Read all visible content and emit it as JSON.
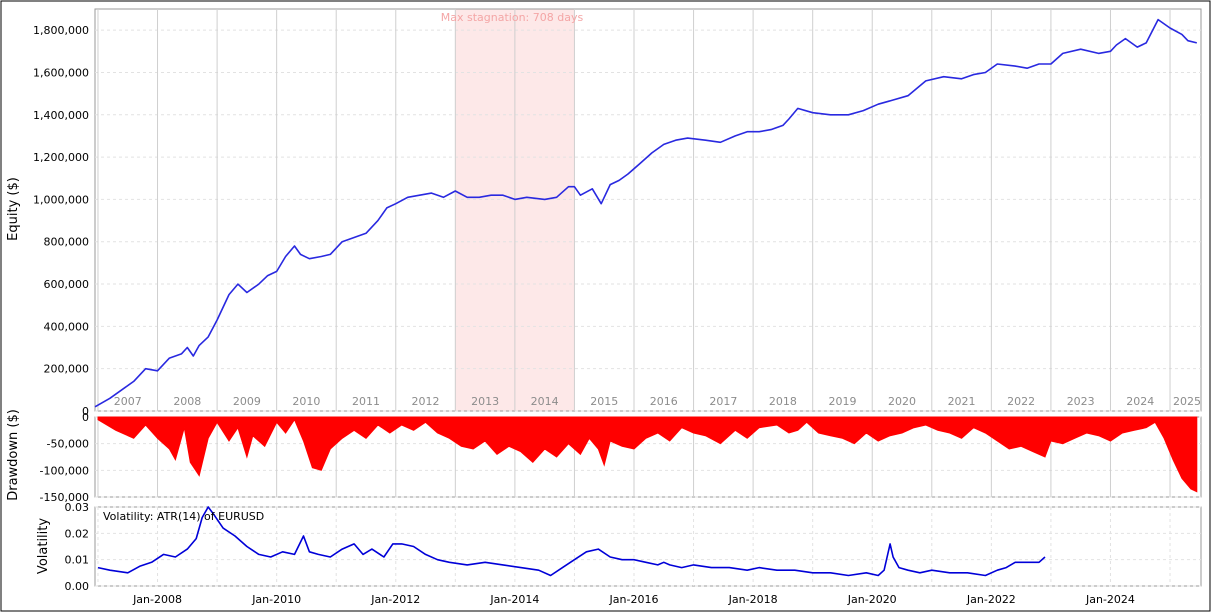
{
  "chart_data": [
    {
      "type": "line",
      "ylabel": "Equity ($)",
      "ylim": [
        0,
        1900000
      ],
      "yticks": [
        0,
        200000,
        400000,
        600000,
        800000,
        1000000,
        1200000,
        1400000,
        1600000,
        1800000
      ],
      "ytick_labels": [
        "0",
        "200,000",
        "400,000",
        "600,000",
        "800,000",
        "1,000,000",
        "1,200,000",
        "1,400,000",
        "1,600,000",
        "1,800,000"
      ],
      "year_labels": [
        "2007",
        "2008",
        "2009",
        "2010",
        "2011",
        "2012",
        "2013",
        "2014",
        "2015",
        "2016",
        "2017",
        "2018",
        "2019",
        "2020",
        "2021",
        "2022",
        "2023",
        "2024",
        "2025"
      ],
      "annotation": "Max stagnation: 708 days",
      "stagnation": {
        "start": 2013.0,
        "end": 2015.0
      },
      "grid": true,
      "series_color": "#2929e0",
      "series": [
        {
          "x": [
            2006.95,
            2007.2,
            2007.45,
            2007.6,
            2007.8,
            2008.0,
            2008.2,
            2008.4,
            2008.5,
            2008.6,
            2008.7,
            2008.85,
            2009.0,
            2009.2,
            2009.35,
            2009.5,
            2009.7,
            2009.85,
            2010.0,
            2010.15,
            2010.3,
            2010.4,
            2010.55,
            2010.75,
            2010.9,
            2011.1,
            2011.3,
            2011.5,
            2011.7,
            2011.85,
            2012.0,
            2012.2,
            2012.4,
            2012.6,
            2012.8,
            2013.0,
            2013.2,
            2013.4,
            2013.6,
            2013.8,
            2014.0,
            2014.2,
            2014.5,
            2014.7,
            2014.9,
            2015.0,
            2015.1,
            2015.3,
            2015.45,
            2015.6,
            2015.75,
            2015.9,
            2016.1,
            2016.3,
            2016.5,
            2016.7,
            2016.9,
            2017.2,
            2017.45,
            2017.7,
            2017.9,
            2018.1,
            2018.3,
            2018.5,
            2018.6,
            2018.75,
            2019.0,
            2019.3,
            2019.6,
            2019.85,
            2020.1,
            2020.35,
            2020.6,
            2020.9,
            2021.2,
            2021.5,
            2021.7,
            2021.9,
            2022.1,
            2022.4,
            2022.6,
            2022.8,
            2023.0,
            2023.2,
            2023.5,
            2023.8,
            2024.0,
            2024.1,
            2024.25,
            2024.45,
            2024.6,
            2024.8,
            2025.0,
            2025.2,
            2025.3,
            2025.45
          ],
          "y": [
            20000,
            60000,
            110000,
            140000,
            200000,
            190000,
            250000,
            270000,
            300000,
            260000,
            310000,
            350000,
            430000,
            550000,
            600000,
            560000,
            600000,
            640000,
            660000,
            730000,
            780000,
            740000,
            720000,
            730000,
            740000,
            800000,
            820000,
            840000,
            900000,
            960000,
            980000,
            1010000,
            1020000,
            1030000,
            1010000,
            1040000,
            1010000,
            1010000,
            1020000,
            1020000,
            1000000,
            1010000,
            1000000,
            1010000,
            1060000,
            1060000,
            1020000,
            1050000,
            980000,
            1070000,
            1090000,
            1120000,
            1170000,
            1220000,
            1260000,
            1280000,
            1290000,
            1280000,
            1270000,
            1300000,
            1320000,
            1320000,
            1330000,
            1350000,
            1380000,
            1430000,
            1410000,
            1400000,
            1400000,
            1420000,
            1450000,
            1470000,
            1490000,
            1560000,
            1580000,
            1570000,
            1590000,
            1600000,
            1640000,
            1630000,
            1620000,
            1640000,
            1640000,
            1690000,
            1710000,
            1690000,
            1700000,
            1730000,
            1760000,
            1720000,
            1740000,
            1850000,
            1810000,
            1780000,
            1750000,
            1740000
          ]
        }
      ]
    },
    {
      "type": "area",
      "ylabel": "Drawdown ($)",
      "ylim": [
        -150000,
        0
      ],
      "yticks": [
        0,
        -50000,
        -100000,
        -150000
      ],
      "ytick_labels": [
        "0",
        "-50,000",
        "-100,000",
        "-150,000"
      ],
      "grid": true,
      "series_color": "#ff0000",
      "series": [
        {
          "x": [
            2007.0,
            2007.3,
            2007.6,
            2007.8,
            2008.0,
            2008.2,
            2008.3,
            2008.45,
            2008.55,
            2008.7,
            2008.85,
            2009.0,
            2009.2,
            2009.35,
            2009.5,
            2009.6,
            2009.8,
            2010.0,
            2010.15,
            2010.3,
            2010.45,
            2010.6,
            2010.75,
            2010.9,
            2011.1,
            2011.3,
            2011.5,
            2011.7,
            2011.9,
            2012.1,
            2012.3,
            2012.5,
            2012.7,
            2012.9,
            2013.1,
            2013.3,
            2013.5,
            2013.7,
            2013.9,
            2014.1,
            2014.3,
            2014.5,
            2014.7,
            2014.9,
            2015.1,
            2015.25,
            2015.4,
            2015.5,
            2015.6,
            2015.8,
            2016.0,
            2016.2,
            2016.4,
            2016.6,
            2016.8,
            2017.0,
            2017.2,
            2017.45,
            2017.7,
            2017.9,
            2018.1,
            2018.4,
            2018.6,
            2018.75,
            2018.9,
            2019.1,
            2019.3,
            2019.5,
            2019.7,
            2019.9,
            2020.1,
            2020.3,
            2020.5,
            2020.7,
            2020.9,
            2021.1,
            2021.3,
            2021.5,
            2021.7,
            2021.9,
            2022.1,
            2022.3,
            2022.5,
            2022.7,
            2022.9,
            2023.0,
            2023.2,
            2023.4,
            2023.6,
            2023.8,
            2024.0,
            2024.2,
            2024.4,
            2024.6,
            2024.75,
            2024.9,
            2025.05,
            2025.2,
            2025.35,
            2025.45
          ],
          "y": [
            -5000,
            -25000,
            -40000,
            -15000,
            -40000,
            -60000,
            -80000,
            -20000,
            -85000,
            -110000,
            -40000,
            -10000,
            -45000,
            -20000,
            -75000,
            -35000,
            -55000,
            -10000,
            -30000,
            -5000,
            -45000,
            -95000,
            -100000,
            -60000,
            -40000,
            -25000,
            -40000,
            -15000,
            -30000,
            -15000,
            -25000,
            -10000,
            -30000,
            -40000,
            -55000,
            -60000,
            -45000,
            -70000,
            -55000,
            -65000,
            -85000,
            -60000,
            -75000,
            -50000,
            -70000,
            -40000,
            -60000,
            -90000,
            -45000,
            -55000,
            -60000,
            -40000,
            -30000,
            -45000,
            -20000,
            -30000,
            -35000,
            -50000,
            -25000,
            -40000,
            -20000,
            -15000,
            -30000,
            -25000,
            -10000,
            -30000,
            -35000,
            -40000,
            -50000,
            -30000,
            -45000,
            -35000,
            -30000,
            -20000,
            -15000,
            -25000,
            -30000,
            -40000,
            -20000,
            -30000,
            -45000,
            -60000,
            -55000,
            -65000,
            -75000,
            -45000,
            -50000,
            -40000,
            -30000,
            -35000,
            -45000,
            -30000,
            -25000,
            -20000,
            -10000,
            -40000,
            -80000,
            -115000,
            -135000,
            -140000
          ]
        }
      ]
    },
    {
      "type": "line",
      "ylabel": "Volatility",
      "legend": "Volatility: ATR(14) of EURUSD",
      "ylim": [
        0,
        0.03
      ],
      "yticks": [
        0,
        0.01,
        0.02,
        0.03
      ],
      "ytick_labels": [
        "0.00",
        "0.01",
        "0.02",
        "0.03"
      ],
      "xtick_labels": [
        "Jan-2008",
        "Jan-2010",
        "Jan-2012",
        "Jan-2014",
        "Jan-2016",
        "Jan-2018",
        "Jan-2020",
        "Jan-2022",
        "Jan-2024"
      ],
      "xticks": [
        2008,
        2010,
        2012,
        2014,
        2016,
        2018,
        2020,
        2022,
        2024
      ],
      "grid": true,
      "series_color": "#0000d8",
      "series": [
        {
          "x": [
            2007.0,
            2007.2,
            2007.5,
            2007.7,
            2007.9,
            2008.1,
            2008.3,
            2008.5,
            2008.65,
            2008.75,
            2008.85,
            2008.95,
            2009.1,
            2009.3,
            2009.5,
            2009.7,
            2009.9,
            2010.1,
            2010.3,
            2010.45,
            2010.55,
            2010.7,
            2010.9,
            2011.1,
            2011.3,
            2011.45,
            2011.6,
            2011.8,
            2011.95,
            2012.1,
            2012.3,
            2012.5,
            2012.7,
            2012.9,
            2013.2,
            2013.5,
            2013.8,
            2014.1,
            2014.4,
            2014.6,
            2014.8,
            2015.0,
            2015.2,
            2015.4,
            2015.6,
            2015.8,
            2016.0,
            2016.2,
            2016.4,
            2016.5,
            2016.6,
            2016.8,
            2017.0,
            2017.3,
            2017.6,
            2017.9,
            2018.1,
            2018.4,
            2018.7,
            2019.0,
            2019.3,
            2019.6,
            2019.9,
            2020.1,
            2020.2,
            2020.3,
            2020.35,
            2020.45,
            2020.6,
            2020.8,
            2021.0,
            2021.3,
            2021.6,
            2021.9,
            2022.1,
            2022.25,
            2022.4,
            2022.6,
            2022.8,
            2022.9
          ],
          "y": [
            0.007,
            0.006,
            0.005,
            0.0075,
            0.009,
            0.012,
            0.011,
            0.014,
            0.018,
            0.026,
            0.03,
            0.027,
            0.022,
            0.019,
            0.015,
            0.012,
            0.011,
            0.013,
            0.012,
            0.019,
            0.013,
            0.012,
            0.011,
            0.014,
            0.016,
            0.012,
            0.014,
            0.011,
            0.016,
            0.016,
            0.015,
            0.012,
            0.01,
            0.009,
            0.008,
            0.009,
            0.008,
            0.007,
            0.006,
            0.004,
            0.007,
            0.01,
            0.013,
            0.014,
            0.011,
            0.01,
            0.01,
            0.009,
            0.008,
            0.009,
            0.008,
            0.007,
            0.008,
            0.007,
            0.007,
            0.006,
            0.007,
            0.006,
            0.006,
            0.005,
            0.005,
            0.004,
            0.005,
            0.004,
            0.006,
            0.016,
            0.011,
            0.007,
            0.006,
            0.005,
            0.006,
            0.005,
            0.005,
            0.004,
            0.006,
            0.007,
            0.009,
            0.009,
            0.009,
            0.011
          ]
        }
      ]
    }
  ]
}
